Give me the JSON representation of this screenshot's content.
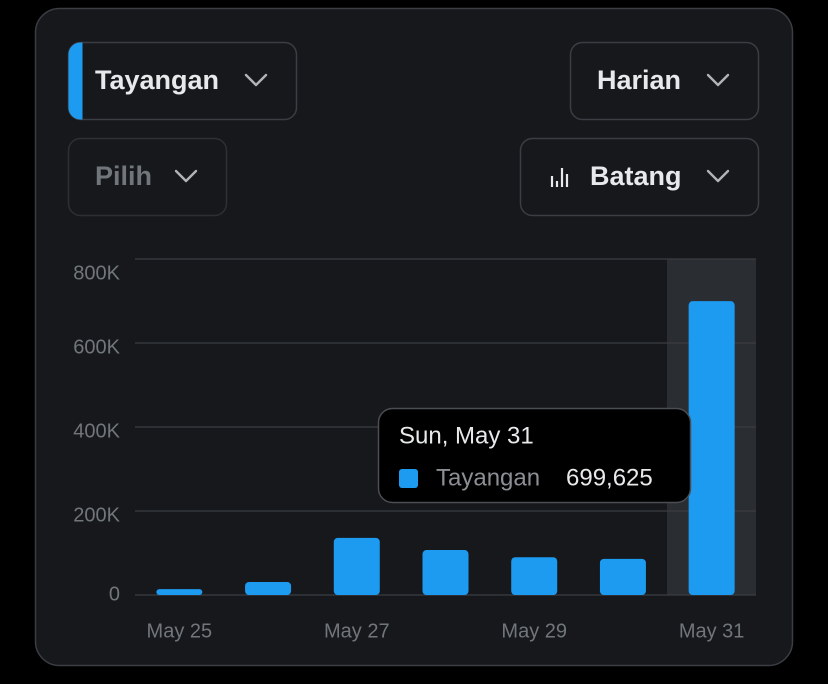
{
  "controls": {
    "metric": "Tayangan",
    "period": "Harian",
    "filter": "Pilih",
    "chart_style": "Batang"
  },
  "chart_data": {
    "type": "bar",
    "categories": [
      "May 25",
      null,
      "May 27",
      null,
      "May 29",
      null,
      "May 31"
    ],
    "series": [
      {
        "name": "Tayangan",
        "color": "#1d9bf0",
        "values": [
          14000,
          31000,
          136000,
          107000,
          90000,
          86000,
          699625
        ],
        "value_labels": [
          null,
          null,
          null,
          null,
          null,
          null,
          "699,625"
        ]
      }
    ],
    "ylim": [
      0,
      800000
    ],
    "yticks": [
      0,
      {
        "value": 200000,
        "label": "200K"
      },
      {
        "value": 400000,
        "label": "400K"
      },
      {
        "value": 600000,
        "label": "600K"
      },
      {
        "value": 800000,
        "label": "800K"
      }
    ],
    "grid": true,
    "tooltip": {
      "title": "Sun, May 31"
    }
  }
}
